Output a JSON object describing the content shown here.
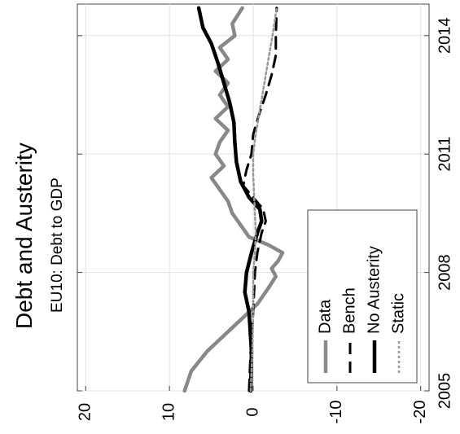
{
  "chart_data": {
    "type": "line",
    "title": "Debt and Austerity",
    "subtitle": "EU10: Debt to GDP",
    "rotation": "rotated 90 degrees counter-clockwise",
    "xlim": [
      2005,
      2014.8
    ],
    "ylim": [
      -21,
      21
    ],
    "x_ticks": [
      "2005",
      "2008",
      "2011",
      "2014"
    ],
    "y_ticks": [
      "20",
      "10",
      "0",
      "-10",
      "-20"
    ],
    "grid": true,
    "legend_position": "bottom-right",
    "series": [
      {
        "name": "Data",
        "style": "solid",
        "color": "#888888",
        "x": [
          2005.0,
          2005.5,
          2006.0,
          2006.4,
          2006.8,
          2007.2,
          2007.6,
          2007.9,
          2008.1,
          2008.3,
          2008.5,
          2008.7,
          2008.9,
          2009.2,
          2009.5,
          2009.8,
          2010.1,
          2010.4,
          2010.7,
          2011.0,
          2011.3,
          2011.6,
          2011.9,
          2012.2,
          2012.5,
          2012.8,
          2013.1,
          2013.4,
          2013.7,
          2014.0,
          2014.3,
          2014.7
        ],
        "y": [
          8.2,
          7.4,
          5.5,
          3.5,
          1.5,
          -0.5,
          -1.8,
          -2.7,
          -2.2,
          -3.0,
          -3.5,
          -1.8,
          0.5,
          1.5,
          2.5,
          3.0,
          4.0,
          5.0,
          3.5,
          4.5,
          4.0,
          3.0,
          4.5,
          3.0,
          4.0,
          3.0,
          4.5,
          3.0,
          4.0,
          2.2,
          2.5,
          1.3
        ]
      },
      {
        "name": "Bench",
        "style": "dashed",
        "color": "#000000",
        "x": [
          2005.0,
          2006.0,
          2007.0,
          2008.0,
          2008.5,
          2009.0,
          2009.3,
          2009.6,
          2009.9,
          2010.2,
          2010.6,
          2011.0,
          2011.5,
          2012.0,
          2012.5,
          2013.0,
          2013.5,
          2014.0,
          2014.7
        ],
        "y": [
          0.5,
          0.3,
          0.0,
          -0.2,
          -0.5,
          -1.0,
          -1.5,
          -1.2,
          0.0,
          1.2,
          0.8,
          0.2,
          0.0,
          -0.7,
          -1.5,
          -2.2,
          -2.7,
          -2.7,
          -2.8
        ]
      },
      {
        "name": "No Austerity",
        "style": "solid",
        "color": "#000000",
        "x": [
          2005.0,
          2006.0,
          2007.0,
          2007.5,
          2008.0,
          2008.5,
          2009.0,
          2009.3,
          2009.6,
          2009.9,
          2010.3,
          2010.8,
          2011.3,
          2011.8,
          2012.3,
          2012.8,
          2013.3,
          2013.8,
          2014.2,
          2014.7
        ],
        "y": [
          0.3,
          0.2,
          0.5,
          1.0,
          0.8,
          0.2,
          -0.5,
          -1.0,
          -0.8,
          0.5,
          1.5,
          2.0,
          2.2,
          2.3,
          2.8,
          3.5,
          4.2,
          5.0,
          6.0,
          6.5
        ]
      },
      {
        "name": "Static",
        "style": "dotted",
        "color": "#999999",
        "x": [
          2005.0,
          2006.0,
          2007.0,
          2008.0,
          2008.5,
          2009.0,
          2009.5,
          2010.0,
          2010.5,
          2011.0,
          2011.5,
          2012.0,
          2012.5,
          2013.0,
          2013.5,
          2014.0,
          2014.7
        ],
        "y": [
          0.3,
          0.1,
          0.0,
          0.0,
          -0.2,
          -0.3,
          -0.2,
          -0.1,
          0.0,
          0.0,
          -0.3,
          -0.7,
          -1.1,
          -1.5,
          -1.9,
          -2.3,
          -2.8
        ]
      }
    ]
  }
}
